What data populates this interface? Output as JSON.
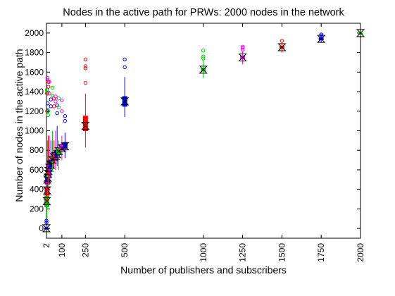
{
  "chart_data": {
    "type": "boxplot",
    "title": "Nodes in the active path for PRWs: 2000 nodes in the network",
    "xlabel": "Number of publishers and subscribers",
    "ylabel": "Number of nodes in the active path",
    "x_ticks": [
      "2",
      "100",
      "250",
      "500",
      "1000",
      "1250",
      "1500",
      "1750",
      "2000"
    ],
    "y_ticks": [
      0,
      200,
      400,
      600,
      800,
      1000,
      1200,
      1400,
      1600,
      1800,
      2000
    ],
    "xlim": [
      2,
      2000
    ],
    "ylim": [
      -100,
      2100
    ],
    "grid": false,
    "legend": "none",
    "colors": [
      "#ff0000",
      "#ff00ff",
      "#0000ff",
      "#00cc00"
    ],
    "boxes": [
      {
        "x": 2,
        "q1": 0,
        "median": 2,
        "q3": 5,
        "wlo": 0,
        "whi": 40,
        "outliers": [
          60,
          80
        ],
        "color": "#0000ff"
      },
      {
        "x": 4,
        "q1": 220,
        "median": 280,
        "q3": 330,
        "wlo": 100,
        "whi": 450,
        "outliers": [
          1390,
          1420
        ],
        "color": "#00cc00"
      },
      {
        "x": 6,
        "q1": 340,
        "median": 390,
        "q3": 420,
        "wlo": 250,
        "whi": 600,
        "outliers": [
          1200,
          1380
        ],
        "color": "#ff0000"
      },
      {
        "x": 8,
        "q1": 450,
        "median": 500,
        "q3": 540,
        "wlo": 350,
        "whi": 700,
        "outliers": [
          1520,
          1540
        ],
        "color": "#ff00ff"
      },
      {
        "x": 10,
        "q1": 480,
        "median": 520,
        "q3": 560,
        "wlo": 400,
        "whi": 900,
        "outliers": [
          1210,
          1280
        ],
        "color": "#0000ff"
      },
      {
        "x": 12,
        "q1": 520,
        "median": 560,
        "q3": 600,
        "wlo": 430,
        "whi": 900,
        "outliers": [
          1160,
          1200
        ],
        "color": "#00cc00"
      },
      {
        "x": 14,
        "q1": 560,
        "median": 590,
        "q3": 620,
        "wlo": 470,
        "whi": 950,
        "outliers": [
          1450,
          1500
        ],
        "color": "#ff0000"
      },
      {
        "x": 20,
        "q1": 600,
        "median": 620,
        "q3": 650,
        "wlo": 500,
        "whi": 950,
        "outliers": [
          1380,
          1500
        ],
        "color": "#ff00ff"
      },
      {
        "x": 30,
        "q1": 620,
        "median": 650,
        "q3": 700,
        "wlo": 530,
        "whi": 900,
        "outliers": [
          1250,
          1320
        ],
        "color": "#0000ff"
      },
      {
        "x": 40,
        "q1": 680,
        "median": 700,
        "q3": 730,
        "wlo": 580,
        "whi": 1000,
        "outliers": [
          1360,
          1440
        ],
        "color": "#00cc00"
      },
      {
        "x": 50,
        "q1": 700,
        "median": 730,
        "q3": 760,
        "wlo": 620,
        "whi": 900,
        "outliers": [
          1250,
          1330
        ],
        "color": "#ff0000"
      },
      {
        "x": 60,
        "q1": 720,
        "median": 740,
        "q3": 780,
        "wlo": 600,
        "whi": 1000,
        "outliers": [
          1300,
          1350
        ],
        "color": "#ff00ff"
      },
      {
        "x": 70,
        "q1": 740,
        "median": 760,
        "q3": 800,
        "wlo": 640,
        "whi": 1050,
        "outliers": [
          1180,
          1260
        ],
        "color": "#0000ff"
      },
      {
        "x": 80,
        "q1": 760,
        "median": 790,
        "q3": 820,
        "wlo": 600,
        "whi": 900,
        "outliers": [
          1240,
          1330
        ],
        "color": "#00cc00"
      },
      {
        "x": 100,
        "q1": 800,
        "median": 820,
        "q3": 860,
        "wlo": 700,
        "whi": 950,
        "outliers": [
          1200,
          1310
        ],
        "color": "#ff00ff"
      },
      {
        "x": 120,
        "q1": 820,
        "median": 840,
        "q3": 880,
        "wlo": 720,
        "whi": 980,
        "outliers": [
          1100,
          1150
        ],
        "color": "#0000ff"
      },
      {
        "x": 250,
        "q1": 1000,
        "median": 1050,
        "q3": 1150,
        "wlo": 830,
        "whi": 1380,
        "outliers": [
          1490,
          1640,
          1660,
          1730
        ],
        "color": "#ff0000"
      },
      {
        "x": 500,
        "q1": 1250,
        "median": 1300,
        "q3": 1350,
        "wlo": 1140,
        "whi": 1550,
        "outliers": [
          1650,
          1730
        ],
        "color": "#0000ff"
      },
      {
        "x": 1000,
        "q1": 1610,
        "median": 1625,
        "q3": 1640,
        "wlo": 1540,
        "whi": 1720,
        "outliers": [
          1740,
          1760,
          1820
        ],
        "color": "#00cc00"
      },
      {
        "x": 1250,
        "q1": 1735,
        "median": 1750,
        "q3": 1765,
        "wlo": 1680,
        "whi": 1810,
        "outliers": [
          1830,
          1850,
          1860
        ],
        "color": "#ff00ff"
      },
      {
        "x": 1500,
        "q1": 1845,
        "median": 1855,
        "q3": 1865,
        "wlo": 1800,
        "whi": 1900,
        "outliers": [
          1920
        ],
        "color": "#ff0000"
      },
      {
        "x": 1750,
        "q1": 1930,
        "median": 1940,
        "q3": 1950,
        "wlo": 1900,
        "whi": 1970,
        "outliers": [
          1975,
          1985
        ],
        "color": "#0000ff"
      },
      {
        "x": 2000,
        "q1": 1995,
        "median": 2000,
        "q3": 2000,
        "wlo": 1990,
        "whi": 2000,
        "outliers": [],
        "color": "#00cc00"
      }
    ]
  }
}
